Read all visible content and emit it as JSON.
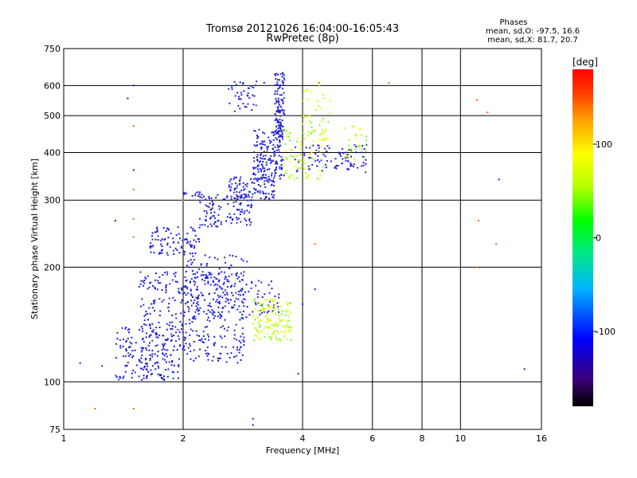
{
  "chart_data": {
    "type": "scatter",
    "title_line1": "Tromsø 20121026 16:04:00-16:05:43",
    "title_line2": "RwPretec (8p)",
    "xlabel": "Frequency [MHz]",
    "ylabel": "Stationary phase Virtual Height [km]",
    "x_scale": "log",
    "y_scale": "log",
    "xlim": [
      1,
      16
    ],
    "ylim": [
      75,
      750
    ],
    "x_ticks": [
      1,
      2,
      4,
      6,
      8,
      10,
      16
    ],
    "y_ticks": [
      75,
      100,
      200,
      300,
      400,
      500,
      600,
      750
    ],
    "grid": true,
    "phase_box": {
      "title": "Phases",
      "line1": "mean, sd,O: -97.5, 16.6",
      "line2": "mean, sd,X:  81.7, 20.7"
    },
    "colorbar": {
      "label": "[deg]",
      "range": [
        -180,
        180
      ],
      "ticks": [
        100,
        0,
        -100
      ],
      "colormap": [
        "#000000",
        "#3b0078",
        "#0000ff",
        "#00b4ff",
        "#00e68c",
        "#00ff00",
        "#b4ff00",
        "#ffff00",
        "#ffa000",
        "#ff3c00",
        "#ff0000"
      ]
    },
    "series": [
      {
        "description_ref": "O-mode cloud (blue)",
        "color": "#1e1ee6",
        "clusters": [
          {
            "f": [
              1.35,
              1.95
            ],
            "h": [
              101,
              140
            ],
            "n": 160
          },
          {
            "f": [
              1.55,
              2.85
            ],
            "h": [
              112,
              195
            ],
            "n": 380
          },
          {
            "f": [
              2.0,
              2.9
            ],
            "h": [
              145,
              215
            ],
            "n": 140
          },
          {
            "f": [
              2.9,
              3.5
            ],
            "h": [
              150,
              185
            ],
            "n": 40
          },
          {
            "f": [
              1.65,
              2.2
            ],
            "h": [
              215,
              255
            ],
            "n": 90
          },
          {
            "f": [
              2.2,
              3.0
            ],
            "h": [
              255,
              310
            ],
            "n": 120
          },
          {
            "f": [
              2.6,
              3.4
            ],
            "h": [
              300,
              345
            ],
            "n": 110
          },
          {
            "f": [
              3.0,
              3.6
            ],
            "h": [
              340,
              460
            ],
            "n": 160
          },
          {
            "f": [
              3.4,
              3.6
            ],
            "h": [
              430,
              650
            ],
            "n": 120
          },
          {
            "f": [
              2.6,
              3.1
            ],
            "h": [
              510,
              640
            ],
            "n": 40
          },
          {
            "f": [
              3.8,
              5.8
            ],
            "h": [
              355,
              420
            ],
            "n": 90
          },
          {
            "f": [
              2.0,
              2.25
            ],
            "h": [
              305,
              315
            ],
            "n": 12
          }
        ]
      },
      {
        "description_ref": "X-mode cloud (yellow-green)",
        "color": "#c8ff00",
        "clusters": [
          {
            "f": [
              3.0,
              3.75
            ],
            "h": [
              128,
              165
            ],
            "n": 130
          },
          {
            "f": [
              3.6,
              4.6
            ],
            "h": [
              340,
              460
            ],
            "n": 80
          },
          {
            "f": [
              4.0,
              4.7
            ],
            "h": [
              430,
              600
            ],
            "n": 40
          },
          {
            "f": [
              5.1,
              5.8
            ],
            "h": [
              380,
              470
            ],
            "n": 30
          }
        ]
      },
      {
        "description_ref": "scattered outliers",
        "color": "#ff6400",
        "points": [
          [
            1.5,
            470
          ],
          [
            1.5,
            320
          ],
          [
            1.5,
            240
          ],
          [
            1.5,
            268
          ],
          [
            1.5,
            85
          ],
          [
            1.2,
            85
          ],
          [
            2.0,
            300
          ],
          [
            4.3,
            230
          ],
          [
            6.6,
            610
          ],
          [
            11.0,
            550
          ],
          [
            11.0,
            200
          ],
          [
            11.7,
            510
          ],
          [
            11.1,
            265
          ],
          [
            12.3,
            230
          ],
          [
            4.4,
            610
          ]
        ]
      },
      {
        "description_ref": "scattered blue outliers",
        "color": "#1e1ee6",
        "points": [
          [
            1.1,
            112
          ],
          [
            1.25,
            110
          ],
          [
            1.5,
            600
          ],
          [
            1.45,
            555
          ],
          [
            1.5,
            360
          ],
          [
            1.35,
            265
          ],
          [
            3.0,
            80
          ],
          [
            3.0,
            77
          ],
          [
            3.2,
            610
          ],
          [
            4.3,
            175
          ],
          [
            4.0,
            160
          ],
          [
            3.9,
            105
          ],
          [
            12.5,
            340
          ],
          [
            14.5,
            108
          ]
        ]
      }
    ]
  }
}
